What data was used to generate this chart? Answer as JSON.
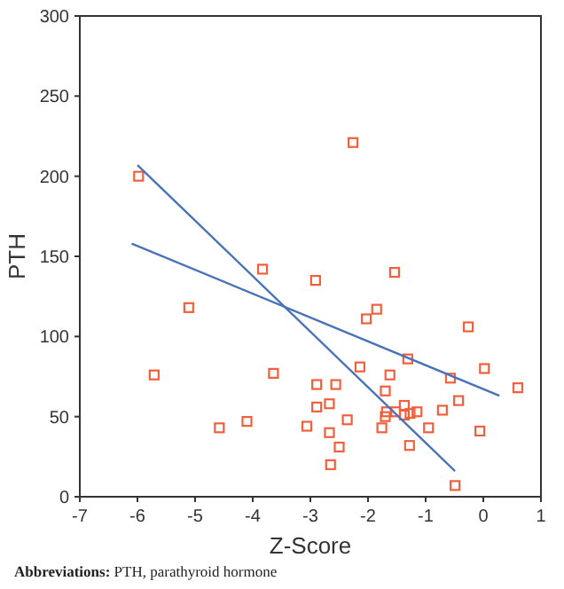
{
  "chart_data": {
    "type": "scatter",
    "xlabel": "Z-Score",
    "ylabel": "PTH",
    "xlim": [
      -7,
      1
    ],
    "xticks": [
      -7,
      -6,
      -5,
      -4,
      -3,
      -2,
      -1,
      0,
      1
    ],
    "ylim": [
      0,
      300
    ],
    "yticks": [
      0,
      50,
      100,
      150,
      200,
      250,
      300
    ],
    "grid": false,
    "series": [
      {
        "color": "#f0603c",
        "marker": "square",
        "x": [
          -5.11,
          -5.71,
          -4.58,
          -4.1,
          -3.64,
          -3.83,
          -2.91,
          -2.89,
          -2.89,
          -3.06,
          -2.67,
          -2.56,
          -2.67,
          -2.5,
          -2.65,
          -2.36,
          -2.14,
          -2.03,
          -1.85,
          -1.54,
          -2.26,
          -5.98,
          -1.62,
          -1.7,
          -1.68,
          -1.7,
          -1.76,
          -1.37,
          -1.52,
          -1.37,
          -1.27,
          -1.15,
          -1.31,
          -1.28,
          -0.95,
          -0.71,
          -0.57,
          -0.43,
          -0.26,
          -0.49,
          -0.06,
          0.02,
          0.6
        ],
        "values": [
          118,
          76,
          43,
          47,
          77,
          142,
          135,
          70,
          56,
          44,
          58,
          70,
          40,
          31,
          20,
          48,
          81,
          111,
          117,
          140,
          221,
          200,
          76,
          66,
          53,
          50,
          43,
          57,
          53,
          51,
          52,
          53,
          86,
          32,
          43,
          54,
          74,
          60,
          106,
          7,
          41,
          80,
          68
        ]
      },
      {
        "type": "line",
        "color": "#4a72b8",
        "marker": "none",
        "x": [
          -6.0,
          -0.49
        ],
        "values": [
          207,
          16
        ]
      },
      {
        "type": "line",
        "color": "#4a72b8",
        "marker": "none",
        "x": [
          -6.1,
          0.28
        ],
        "values": [
          158,
          63
        ]
      }
    ],
    "annotations": [
      "Abbreviations: PTH, parathyroid hormone"
    ]
  }
}
